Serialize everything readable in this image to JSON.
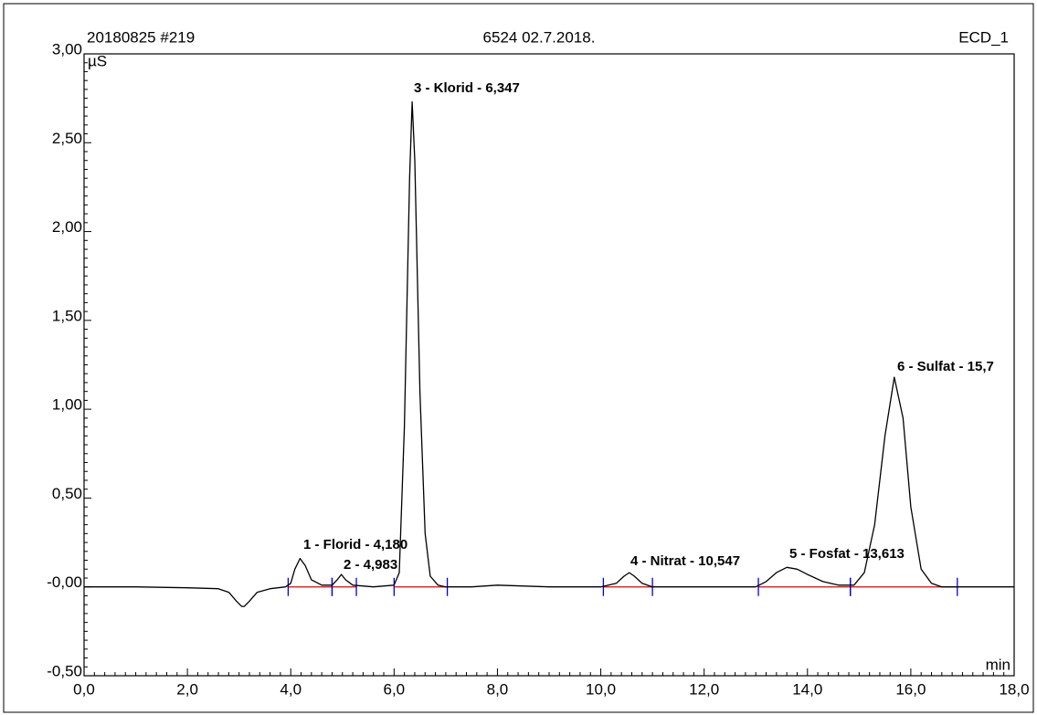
{
  "chart_data": {
    "type": "line",
    "header_left": "20180825 #219",
    "header_center": "6524 02.7.2018.",
    "header_right": "ECD_1",
    "y_unit": "µS",
    "x_unit": "min",
    "color": "#000000",
    "baseline_color": "#e00000",
    "delimiter_color": "#0000dd",
    "xlim": [
      0,
      18
    ],
    "ylim": [
      -0.5,
      3.0
    ],
    "xticks": [
      {
        "value": 0,
        "label": "0,0"
      },
      {
        "value": 2,
        "label": "2,0"
      },
      {
        "value": 4,
        "label": "4,0"
      },
      {
        "value": 6,
        "label": "6,0"
      },
      {
        "value": 8,
        "label": "8,0"
      },
      {
        "value": 10,
        "label": "10,0"
      },
      {
        "value": 12,
        "label": "12,0"
      },
      {
        "value": 14,
        "label": "14,0"
      },
      {
        "value": 16,
        "label": "16,0"
      },
      {
        "value": 18,
        "label": "18,0"
      }
    ],
    "yticks": [
      {
        "value": -0.5,
        "label": "-0,50"
      },
      {
        "value": 0,
        "label": "-0,00"
      },
      {
        "value": 0.5,
        "label": "0,50"
      },
      {
        "value": 1.0,
        "label": "1,00"
      },
      {
        "value": 1.5,
        "label": "1,50"
      },
      {
        "value": 2.0,
        "label": "2,00"
      },
      {
        "value": 2.5,
        "label": "2,50"
      },
      {
        "value": 3.0,
        "label": "3,00"
      }
    ],
    "x": [
      0,
      1,
      2,
      2.6,
      2.8,
      2.95,
      3.05,
      3.1,
      3.2,
      3.35,
      3.6,
      3.9,
      4.0,
      4.08,
      4.18,
      4.28,
      4.4,
      4.6,
      4.8,
      4.9,
      4.98,
      5.06,
      5.2,
      5.6,
      6.0,
      6.1,
      6.2,
      6.3,
      6.35,
      6.4,
      6.5,
      6.6,
      6.7,
      6.85,
      7.0,
      7.5,
      8.0,
      9.0,
      10.0,
      10.3,
      10.45,
      10.55,
      10.65,
      10.8,
      11.0,
      12.0,
      13.0,
      13.2,
      13.4,
      13.6,
      13.8,
      14.0,
      14.3,
      14.6,
      14.9,
      15.1,
      15.3,
      15.5,
      15.68,
      15.85,
      16.0,
      16.2,
      16.4,
      16.6,
      17.0,
      18.0
    ],
    "values": [
      0,
      0,
      -0.005,
      -0.01,
      -0.03,
      -0.08,
      -0.11,
      -0.11,
      -0.08,
      -0.03,
      -0.01,
      0,
      0.02,
      0.1,
      0.16,
      0.12,
      0.04,
      0.01,
      0.01,
      0.04,
      0.07,
      0.04,
      0.01,
      0,
      0.01,
      0.08,
      0.9,
      2.3,
      2.73,
      2.4,
      1.1,
      0.3,
      0.06,
      0.01,
      0,
      0,
      0.01,
      0,
      0,
      0.02,
      0.06,
      0.08,
      0.06,
      0.02,
      0,
      0,
      0,
      0.03,
      0.08,
      0.11,
      0.1,
      0.07,
      0.03,
      0.01,
      0.01,
      0.08,
      0.35,
      0.85,
      1.18,
      0.95,
      0.45,
      0.1,
      0.02,
      0,
      0,
      0
    ],
    "baselines": [
      [
        3.95,
        4.8
      ],
      [
        4.8,
        5.27
      ],
      [
        6.0,
        7.03
      ],
      [
        10.05,
        11.0
      ],
      [
        13.05,
        14.83
      ],
      [
        14.83,
        16.9
      ]
    ],
    "annotations": [
      "1 - Florid - 4,180",
      "2 - 4,983",
      "3 - Klorid - 6,347",
      "4 - Nitrat - 10,547",
      "5 - Fosfat - 13,613",
      "6 - Sulfat - 15,7"
    ]
  }
}
